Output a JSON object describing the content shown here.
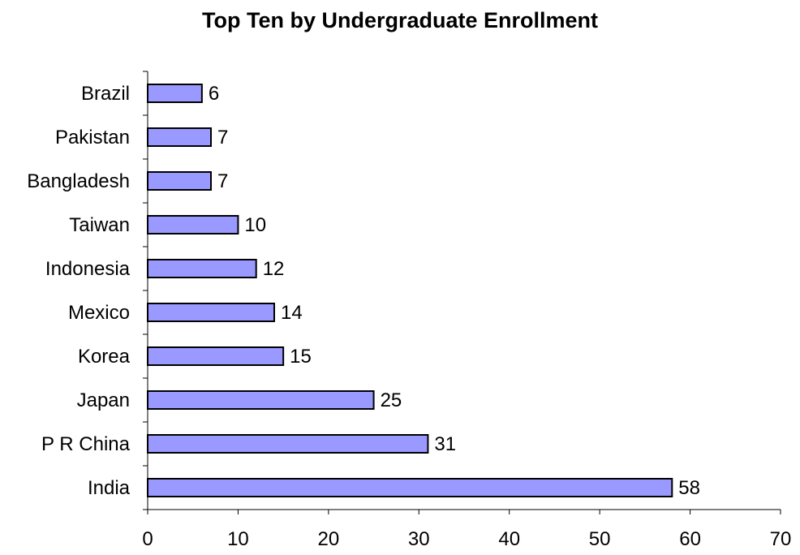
{
  "chart_data": {
    "type": "bar",
    "orientation": "horizontal",
    "title": "Top Ten by Undergraduate Enrollment",
    "xlabel": "",
    "ylabel": "",
    "categories": [
      "India",
      "P R China",
      "Japan",
      "Korea",
      "Mexico",
      "Indonesia",
      "Taiwan",
      "Bangladesh",
      "Pakistan",
      "Brazil"
    ],
    "values": [
      58,
      31,
      25,
      15,
      14,
      12,
      10,
      7,
      7,
      6
    ],
    "xlim": [
      0,
      70
    ],
    "xticks": [
      0,
      10,
      20,
      30,
      40,
      50,
      60,
      70
    ],
    "grid": false,
    "legend": "none",
    "data_labels": true,
    "colors": {
      "bar_fill": "#9999ff",
      "bar_stroke": "#000000",
      "axis": "#000000"
    }
  }
}
